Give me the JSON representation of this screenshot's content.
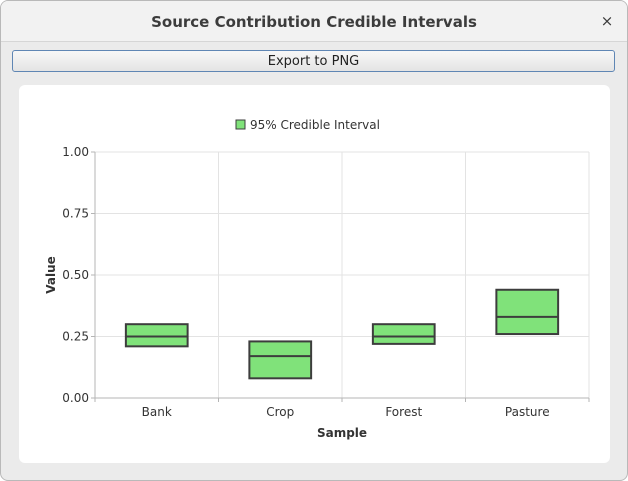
{
  "window": {
    "title": "Source Contribution Credible Intervals",
    "close_symbol": "×"
  },
  "toolbar": {
    "export_label": "Export to PNG"
  },
  "chart_data": {
    "type": "box",
    "legend": {
      "label": "95% Credible Interval",
      "placement": "top-center"
    },
    "xlabel": "Sample",
    "ylabel": "Value",
    "ylim": [
      0,
      1
    ],
    "yticks": [
      "0.00",
      "0.25",
      "0.50",
      "0.75",
      "1.00"
    ],
    "categories": [
      "Bank",
      "Crop",
      "Forest",
      "Pasture"
    ],
    "series": [
      {
        "lower": [
          0.21,
          0.08,
          0.22,
          0.26
        ],
        "median": [
          0.25,
          0.17,
          0.25,
          0.33
        ],
        "upper": [
          0.3,
          0.23,
          0.3,
          0.44
        ]
      }
    ],
    "grid": true,
    "colors": {
      "box_fill": "#80e27a",
      "box_stroke": "#3d3d3d",
      "grid": "#e3e3e3",
      "axis": "#b5b5b5"
    }
  }
}
